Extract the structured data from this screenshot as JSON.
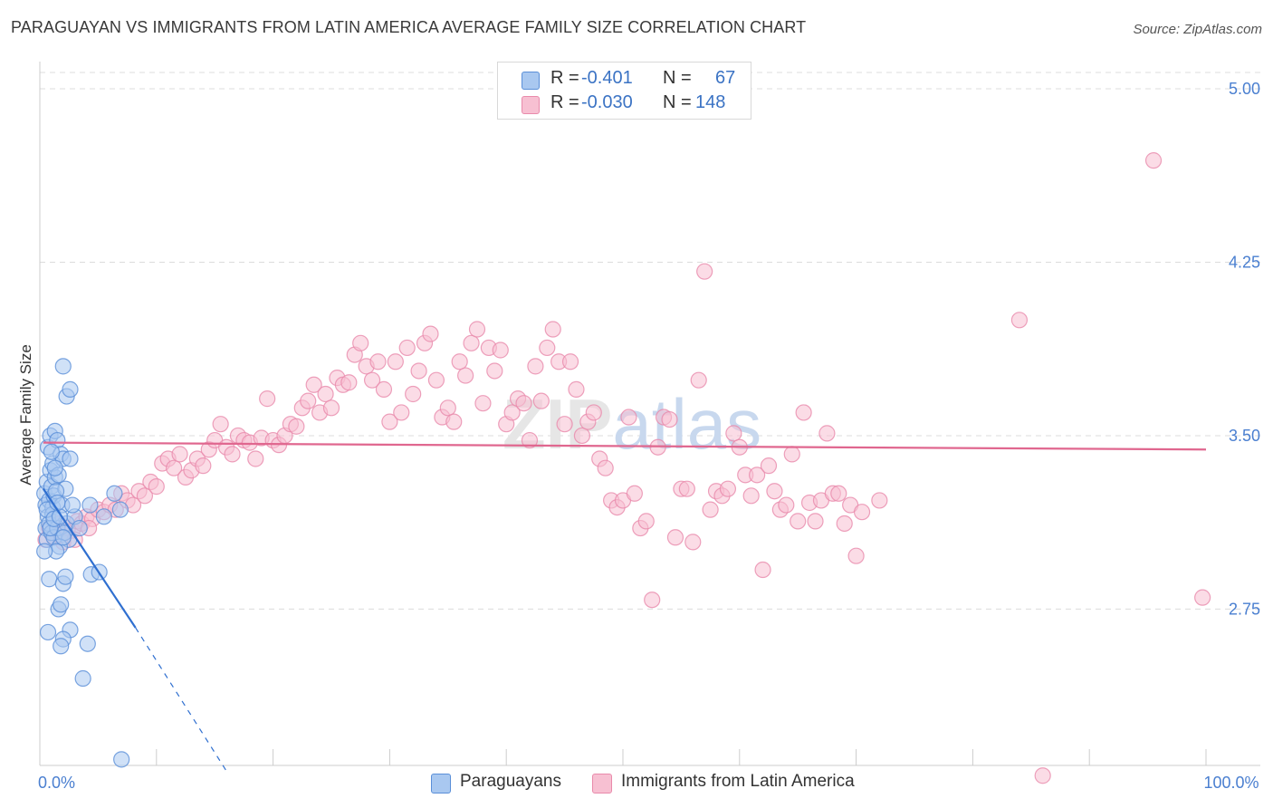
{
  "header": {
    "title": "PARAGUAYAN VS IMMIGRANTS FROM LATIN AMERICA AVERAGE FAMILY SIZE CORRELATION CHART",
    "source": "Source: ZipAtlas.com"
  },
  "watermark": {
    "part1": "ZIP",
    "part2": "atlas"
  },
  "stats": [
    {
      "r_label": "R =",
      "r_value": "-0.401",
      "n_label": "N =",
      "n_value": "67"
    },
    {
      "r_label": "R =",
      "r_value": "-0.030",
      "n_label": "N =",
      "n_value": "148"
    }
  ],
  "colors": {
    "paraguayans_fill": "#a9c8f0",
    "paraguayans_stroke": "#5a8fd8",
    "paraguayans_line": "#2f6fd0",
    "immigrants_fill": "#f7c0d2",
    "immigrants_stroke": "#e98aab",
    "immigrants_line": "#e0678f",
    "grid": "#dcdcdc",
    "tick_text": "#4a7fd0"
  },
  "chart_data": {
    "type": "scatter",
    "title": "PARAGUAYAN VS IMMIGRANTS FROM LATIN AMERICA AVERAGE FAMILY SIZE CORRELATION CHART",
    "xlabel": "",
    "ylabel": "Average Family Size",
    "xlim": [
      0,
      100
    ],
    "ylim": [
      2.0,
      5.1
    ],
    "x_tick_labels": [
      {
        "value": 0,
        "label": "0.0%"
      },
      {
        "value": 100,
        "label": "100.0%"
      }
    ],
    "x_minor_ticks": [
      0,
      10,
      20,
      30,
      40,
      50,
      60,
      70,
      80,
      90,
      100
    ],
    "y_ticks": [
      {
        "value": 2.75,
        "label": "2.75"
      },
      {
        "value": 3.5,
        "label": "3.50"
      },
      {
        "value": 4.25,
        "label": "4.25"
      },
      {
        "value": 5.0,
        "label": "5.00"
      }
    ],
    "grid": true,
    "legend_position": "bottom-center",
    "series": [
      {
        "name": "Paraguayans",
        "r": -0.401,
        "n": 67,
        "trend": {
          "x0": 0.3,
          "y0": 3.27,
          "x1": 8.2,
          "y1": 2.67,
          "dash_to_x": 16.0,
          "dash_to_y": 2.05
        },
        "points": [
          [
            0.4,
            3.25
          ],
          [
            0.5,
            3.2
          ],
          [
            0.6,
            3.3
          ],
          [
            0.7,
            3.15
          ],
          [
            0.8,
            3.22
          ],
          [
            0.9,
            3.35
          ],
          [
            1.0,
            3.28
          ],
          [
            1.1,
            3.19
          ],
          [
            1.2,
            3.24
          ],
          [
            1.3,
            3.32
          ],
          [
            0.5,
            3.1
          ],
          [
            0.6,
            3.05
          ],
          [
            0.8,
            3.12
          ],
          [
            1.0,
            3.08
          ],
          [
            1.2,
            3.06
          ],
          [
            1.5,
            3.1
          ],
          [
            0.7,
            3.45
          ],
          [
            0.9,
            3.5
          ],
          [
            1.1,
            3.38
          ],
          [
            1.3,
            3.52
          ],
          [
            1.5,
            3.48
          ],
          [
            1.8,
            3.42
          ],
          [
            2.0,
            3.4
          ],
          [
            2.2,
            3.27
          ],
          [
            1.6,
            3.33
          ],
          [
            1.9,
            3.2
          ],
          [
            2.3,
            3.12
          ],
          [
            2.5,
            3.05
          ],
          [
            2.1,
            3.08
          ],
          [
            1.7,
            3.02
          ],
          [
            1.4,
            3.0
          ],
          [
            1.1,
            3.16
          ],
          [
            0.6,
            3.18
          ],
          [
            0.9,
            3.1
          ],
          [
            1.2,
            3.14
          ],
          [
            1.4,
            3.26
          ],
          [
            1.7,
            3.15
          ],
          [
            2.0,
            3.06
          ],
          [
            2.6,
            3.4
          ],
          [
            1.3,
            3.36
          ],
          [
            2.0,
            3.8
          ],
          [
            2.3,
            3.67
          ],
          [
            2.6,
            3.7
          ],
          [
            0.8,
            2.88
          ],
          [
            2.0,
            2.86
          ],
          [
            2.2,
            2.89
          ],
          [
            1.6,
            2.75
          ],
          [
            1.8,
            2.77
          ],
          [
            0.7,
            2.65
          ],
          [
            2.6,
            2.66
          ],
          [
            2.0,
            2.62
          ],
          [
            1.8,
            2.59
          ],
          [
            4.1,
            2.6
          ],
          [
            3.7,
            2.45
          ],
          [
            4.4,
            2.9
          ],
          [
            5.1,
            2.91
          ],
          [
            6.4,
            3.25
          ],
          [
            6.9,
            3.18
          ],
          [
            5.5,
            3.15
          ],
          [
            4.3,
            3.2
          ],
          [
            3.0,
            3.15
          ],
          [
            3.4,
            3.1
          ],
          [
            7.0,
            2.1
          ],
          [
            1.0,
            3.43
          ],
          [
            0.4,
            3.0
          ],
          [
            1.5,
            3.21
          ],
          [
            2.8,
            3.2
          ]
        ]
      },
      {
        "name": "Immigrants from Latin America",
        "r": -0.03,
        "n": 148,
        "trend": {
          "x0": 0.3,
          "y0": 3.47,
          "x1": 100,
          "y1": 3.44
        },
        "points": [
          [
            0.5,
            3.05
          ],
          [
            0.8,
            3.1
          ],
          [
            1.0,
            3.08
          ],
          [
            1.3,
            3.06
          ],
          [
            1.6,
            3.12
          ],
          [
            2.0,
            3.04
          ],
          [
            2.4,
            3.1
          ],
          [
            2.8,
            3.09
          ],
          [
            3.2,
            3.13
          ],
          [
            3.6,
            3.12
          ],
          [
            4.0,
            3.15
          ],
          [
            4.5,
            3.14
          ],
          [
            5.0,
            3.18
          ],
          [
            5.5,
            3.17
          ],
          [
            6.0,
            3.2
          ],
          [
            6.5,
            3.18
          ],
          [
            7.0,
            3.25
          ],
          [
            7.5,
            3.22
          ],
          [
            8.0,
            3.2
          ],
          [
            8.5,
            3.26
          ],
          [
            9.0,
            3.24
          ],
          [
            9.5,
            3.3
          ],
          [
            10.0,
            3.28
          ],
          [
            10.5,
            3.38
          ],
          [
            11.0,
            3.4
          ],
          [
            11.5,
            3.36
          ],
          [
            12.0,
            3.42
          ],
          [
            12.5,
            3.32
          ],
          [
            13.0,
            3.35
          ],
          [
            13.5,
            3.4
          ],
          [
            14.0,
            3.37
          ],
          [
            14.5,
            3.44
          ],
          [
            15.0,
            3.48
          ],
          [
            15.5,
            3.55
          ],
          [
            16.0,
            3.45
          ],
          [
            16.5,
            3.42
          ],
          [
            17.0,
            3.5
          ],
          [
            17.5,
            3.48
          ],
          [
            18.0,
            3.47
          ],
          [
            18.5,
            3.4
          ],
          [
            19.0,
            3.49
          ],
          [
            19.5,
            3.66
          ],
          [
            20.0,
            3.48
          ],
          [
            20.5,
            3.46
          ],
          [
            21.0,
            3.5
          ],
          [
            21.5,
            3.55
          ],
          [
            22.0,
            3.54
          ],
          [
            22.5,
            3.62
          ],
          [
            23.0,
            3.65
          ],
          [
            23.5,
            3.72
          ],
          [
            24.0,
            3.6
          ],
          [
            24.5,
            3.68
          ],
          [
            25.0,
            3.62
          ],
          [
            25.5,
            3.75
          ],
          [
            26.0,
            3.72
          ],
          [
            26.5,
            3.73
          ],
          [
            27.0,
            3.85
          ],
          [
            27.5,
            3.9
          ],
          [
            28.0,
            3.8
          ],
          [
            28.5,
            3.74
          ],
          [
            29.0,
            3.82
          ],
          [
            29.5,
            3.7
          ],
          [
            30.0,
            3.56
          ],
          [
            30.5,
            3.82
          ],
          [
            31.0,
            3.6
          ],
          [
            31.5,
            3.88
          ],
          [
            32.0,
            3.68
          ],
          [
            32.5,
            3.78
          ],
          [
            33.0,
            3.9
          ],
          [
            33.5,
            3.94
          ],
          [
            34.0,
            3.74
          ],
          [
            34.5,
            3.58
          ],
          [
            35.0,
            3.62
          ],
          [
            35.5,
            3.56
          ],
          [
            36.0,
            3.82
          ],
          [
            36.5,
            3.76
          ],
          [
            37.0,
            3.9
          ],
          [
            37.5,
            3.96
          ],
          [
            38.0,
            3.64
          ],
          [
            38.5,
            3.88
          ],
          [
            39.0,
            3.78
          ],
          [
            39.5,
            3.87
          ],
          [
            40.0,
            3.55
          ],
          [
            40.5,
            3.6
          ],
          [
            41.0,
            3.66
          ],
          [
            41.5,
            3.64
          ],
          [
            42.0,
            3.48
          ],
          [
            42.5,
            3.8
          ],
          [
            43.0,
            3.65
          ],
          [
            43.5,
            3.88
          ],
          [
            44.0,
            3.96
          ],
          [
            44.5,
            3.82
          ],
          [
            45.0,
            3.55
          ],
          [
            45.5,
            3.82
          ],
          [
            46.0,
            3.7
          ],
          [
            46.5,
            3.5
          ],
          [
            47.0,
            3.56
          ],
          [
            47.5,
            3.6
          ],
          [
            48.0,
            3.4
          ],
          [
            48.5,
            3.36
          ],
          [
            49.0,
            3.22
          ],
          [
            49.5,
            3.19
          ],
          [
            50.0,
            3.22
          ],
          [
            50.5,
            3.58
          ],
          [
            51.0,
            3.25
          ],
          [
            51.5,
            3.1
          ],
          [
            52.0,
            3.13
          ],
          [
            52.5,
            2.79
          ],
          [
            53.0,
            3.45
          ],
          [
            53.5,
            3.58
          ],
          [
            54.0,
            3.57
          ],
          [
            54.5,
            3.06
          ],
          [
            55.0,
            3.27
          ],
          [
            55.5,
            3.27
          ],
          [
            56.0,
            3.04
          ],
          [
            56.5,
            3.74
          ],
          [
            57.0,
            4.21
          ],
          [
            57.5,
            3.18
          ],
          [
            58.0,
            3.26
          ],
          [
            58.5,
            3.24
          ],
          [
            59.0,
            3.27
          ],
          [
            59.5,
            3.51
          ],
          [
            60.0,
            3.45
          ],
          [
            60.5,
            3.33
          ],
          [
            61.0,
            3.24
          ],
          [
            61.5,
            3.33
          ],
          [
            62.0,
            2.92
          ],
          [
            62.5,
            3.37
          ],
          [
            63.0,
            3.26
          ],
          [
            63.5,
            3.18
          ],
          [
            64.0,
            3.2
          ],
          [
            64.5,
            3.42
          ],
          [
            65.0,
            3.13
          ],
          [
            65.5,
            3.6
          ],
          [
            66.0,
            3.21
          ],
          [
            66.5,
            3.13
          ],
          [
            67.0,
            3.22
          ],
          [
            67.5,
            3.51
          ],
          [
            68.0,
            3.25
          ],
          [
            68.5,
            3.25
          ],
          [
            69.0,
            3.12
          ],
          [
            69.5,
            3.2
          ],
          [
            70.0,
            2.98
          ],
          [
            70.5,
            3.17
          ],
          [
            72.0,
            3.22
          ],
          [
            84.0,
            4.0
          ],
          [
            86.0,
            2.03
          ],
          [
            95.5,
            4.69
          ],
          [
            99.7,
            2.8
          ],
          [
            1.8,
            3.07
          ],
          [
            3.0,
            3.05
          ],
          [
            4.2,
            3.1
          ]
        ]
      }
    ]
  },
  "legend": [
    {
      "label": "Paraguayans"
    },
    {
      "label": "Immigrants from Latin America"
    }
  ]
}
